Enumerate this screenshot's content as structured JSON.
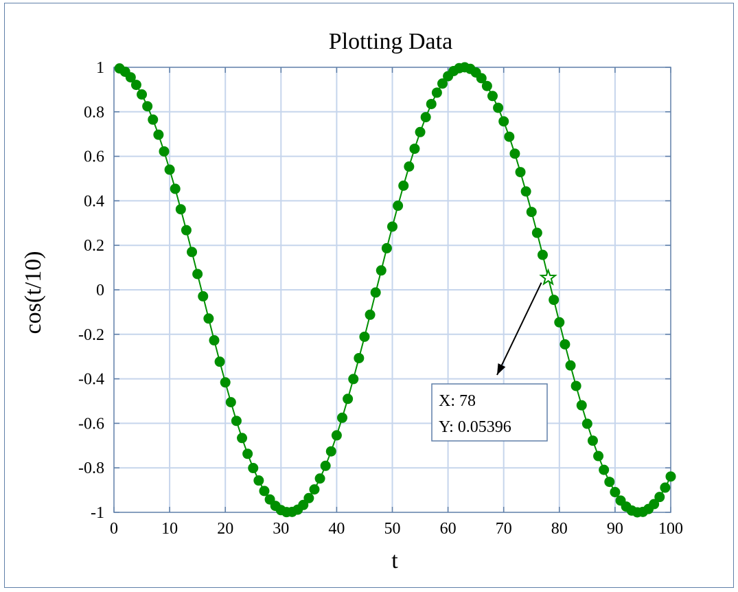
{
  "chart_data": {
    "type": "line",
    "title": "Plotting Data",
    "xlabel": "t",
    "ylabel": "cos(t/10)",
    "xlim": [
      0,
      100
    ],
    "ylim": [
      -1,
      1
    ],
    "grid": true,
    "x_ticks": [
      0,
      10,
      20,
      30,
      40,
      50,
      60,
      70,
      80,
      90,
      100
    ],
    "y_ticks": [
      -1,
      -0.8,
      -0.6,
      -0.4,
      -0.2,
      0,
      0.2,
      0.4,
      0.6,
      0.8,
      1
    ],
    "x_tick_labels": [
      "0",
      "10",
      "20",
      "30",
      "40",
      "50",
      "60",
      "70",
      "80",
      "90",
      "100"
    ],
    "y_tick_labels": [
      "-1",
      "-0.8",
      "-0.6",
      "-0.4",
      "-0.2",
      "0",
      "0.2",
      "0.4",
      "0.6",
      "0.8",
      "1"
    ],
    "series": [
      {
        "color": "#008f00",
        "marker": "circle",
        "x": [
          1,
          2,
          3,
          4,
          5,
          6,
          7,
          8,
          9,
          10,
          11,
          12,
          13,
          14,
          15,
          16,
          17,
          18,
          19,
          20,
          21,
          22,
          23,
          24,
          25,
          26,
          27,
          28,
          29,
          30,
          31,
          32,
          33,
          34,
          35,
          36,
          37,
          38,
          39,
          40,
          41,
          42,
          43,
          44,
          45,
          46,
          47,
          48,
          49,
          50,
          51,
          52,
          53,
          54,
          55,
          56,
          57,
          58,
          59,
          60,
          61,
          62,
          63,
          64,
          65,
          66,
          67,
          68,
          69,
          70,
          71,
          72,
          73,
          74,
          75,
          76,
          77,
          78,
          79,
          80,
          81,
          82,
          83,
          84,
          85,
          86,
          87,
          88,
          89,
          90,
          91,
          92,
          93,
          94,
          95,
          96,
          97,
          98,
          99,
          100
        ],
        "y": [
          0.995,
          0.98,
          0.955,
          0.921,
          0.878,
          0.825,
          0.765,
          0.697,
          0.622,
          0.54,
          0.454,
          0.362,
          0.268,
          0.17,
          0.071,
          -0.029,
          -0.129,
          -0.227,
          -0.323,
          -0.416,
          -0.505,
          -0.589,
          -0.666,
          -0.737,
          -0.801,
          -0.857,
          -0.904,
          -0.942,
          -0.971,
          -0.99,
          -0.999,
          -0.998,
          -0.988,
          -0.967,
          -0.936,
          -0.897,
          -0.848,
          -0.791,
          -0.726,
          -0.654,
          -0.575,
          -0.49,
          -0.401,
          -0.307,
          -0.211,
          -0.112,
          -0.012,
          0.087,
          0.187,
          0.284,
          0.378,
          0.468,
          0.554,
          0.634,
          0.709,
          0.776,
          0.835,
          0.886,
          0.927,
          0.96,
          0.983,
          0.996,
          1.0,
          0.993,
          0.977,
          0.951,
          0.916,
          0.871,
          0.818,
          0.757,
          0.688,
          0.612,
          0.529,
          0.442,
          0.35,
          0.256,
          0.157,
          0.054,
          -0.045,
          -0.146,
          -0.245,
          -0.34,
          -0.432,
          -0.519,
          -0.602,
          -0.678,
          -0.747,
          -0.809,
          -0.863,
          -0.909,
          -0.947,
          -0.974,
          -0.992,
          -1.0,
          -0.998,
          -0.985,
          -0.963,
          -0.931,
          -0.889,
          -0.839
        ]
      }
    ],
    "datatip": {
      "x": 78,
      "y": 0.05396,
      "x_text": "X: 78",
      "y_text": "Y: 0.05396"
    }
  }
}
